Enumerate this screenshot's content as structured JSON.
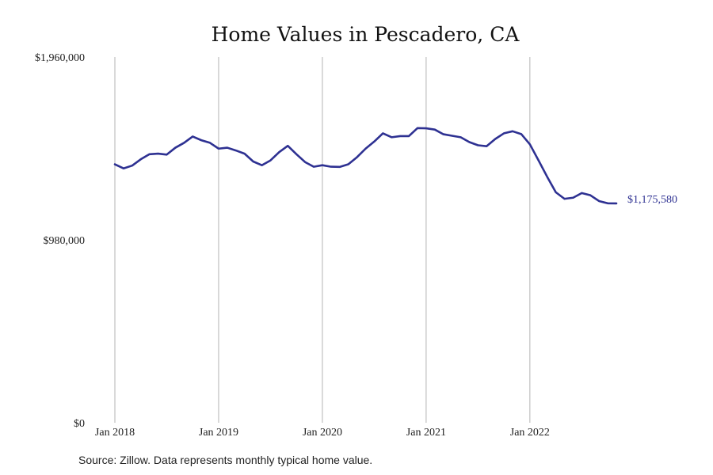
{
  "chart_data": {
    "type": "line",
    "title": "Home Values in Pescadero, CA",
    "xlabel": "",
    "ylabel": "",
    "ylim": [
      0,
      1960000
    ],
    "y_ticks": [
      {
        "value": 0,
        "label": "$0"
      },
      {
        "value": 980000,
        "label": "$980,000"
      },
      {
        "value": 1960000,
        "label": "$1,960,000"
      }
    ],
    "x_ticks": [
      {
        "index": 0,
        "label": "Jan 2018"
      },
      {
        "index": 12,
        "label": "Jan 2019"
      },
      {
        "index": 24,
        "label": "Jan 2020"
      },
      {
        "index": 36,
        "label": "Jan 2021"
      },
      {
        "index": 48,
        "label": "Jan 2022"
      }
    ],
    "grid": "vertical",
    "legend": "none",
    "color": "#2e3192",
    "end_label": "$1,175,580",
    "x": [
      "2018-01",
      "2018-02",
      "2018-03",
      "2018-04",
      "2018-05",
      "2018-06",
      "2018-07",
      "2018-08",
      "2018-09",
      "2018-10",
      "2018-11",
      "2018-12",
      "2019-01",
      "2019-02",
      "2019-03",
      "2019-04",
      "2019-05",
      "2019-06",
      "2019-07",
      "2019-08",
      "2019-09",
      "2019-10",
      "2019-11",
      "2019-12",
      "2020-01",
      "2020-02",
      "2020-03",
      "2020-04",
      "2020-05",
      "2020-06",
      "2020-07",
      "2020-08",
      "2020-09",
      "2020-10",
      "2020-11",
      "2020-12",
      "2021-01",
      "2021-02",
      "2021-03",
      "2021-04",
      "2021-05",
      "2021-06",
      "2021-07",
      "2021-08",
      "2021-09",
      "2021-10",
      "2021-11",
      "2021-12",
      "2022-01",
      "2022-02",
      "2022-03",
      "2022-04",
      "2022-05",
      "2022-06",
      "2022-07",
      "2022-08",
      "2022-09",
      "2022-10",
      "2022-11"
    ],
    "series": [
      {
        "values": [
          1385000,
          1363000,
          1378000,
          1412000,
          1439000,
          1442000,
          1437000,
          1474000,
          1500000,
          1534000,
          1514000,
          1500000,
          1469000,
          1474000,
          1459000,
          1442000,
          1400000,
          1380000,
          1406000,
          1450000,
          1484000,
          1439000,
          1397000,
          1372000,
          1380000,
          1372000,
          1371000,
          1385000,
          1423000,
          1469000,
          1507000,
          1551000,
          1530000,
          1536000,
          1536000,
          1579000,
          1578000,
          1571000,
          1546000,
          1538000,
          1530000,
          1504000,
          1487000,
          1482000,
          1521000,
          1551000,
          1562000,
          1547000,
          1492000,
          1406000,
          1318000,
          1235000,
          1200000,
          1206000,
          1231000,
          1219000,
          1188000,
          1176000,
          1175580
        ]
      }
    ]
  },
  "footer": {
    "source": "Source: Zillow. Data represents monthly typical home value."
  }
}
